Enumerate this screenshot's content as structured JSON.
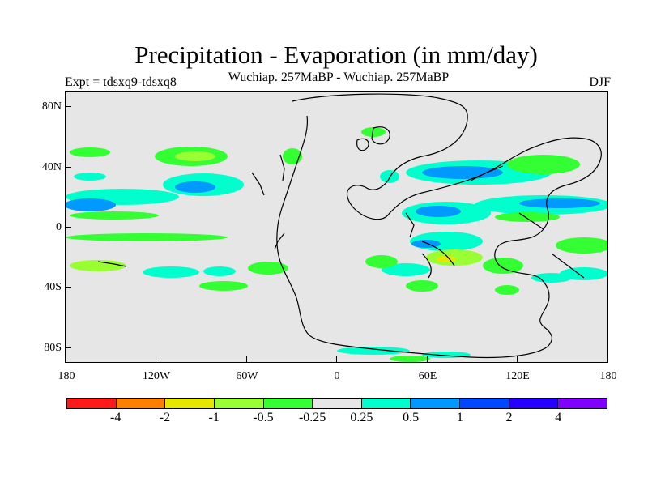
{
  "title": "Precipitation - Evaporation (in mm/day)",
  "subtitle": "Wuchiap. 257MaBP - Wuchiap. 257MaBP",
  "left_label": "Expt = tdsxq9-tdsxq8",
  "right_label": "DJF",
  "y_ticks": [
    "80N",
    "40N",
    "0",
    "40S",
    "80S"
  ],
  "x_ticks": [
    "180",
    "120W",
    "60W",
    "0",
    "60E",
    "120E",
    "180"
  ],
  "colorbar": {
    "labels": [
      "-4",
      "-2",
      "-1",
      "-0.5",
      "-0.25",
      "0.25",
      "0.5",
      "1",
      "2",
      "4"
    ],
    "colors": [
      "#ff1a1a",
      "#ff8000",
      "#e6e600",
      "#99ff33",
      "#33ff33",
      "#e6e6e6",
      "#00ffcc",
      "#0099ff",
      "#0047ff",
      "#2600ff",
      "#8000ff"
    ]
  },
  "chart_data": {
    "type": "heatmap",
    "title": "Precipitation - Evaporation (in mm/day)",
    "subtitle": "Wuchiap. 257MaBP - Wuchiap. 257MaBP",
    "experiment": "Expt = tdsxq9-tdsxq8",
    "season": "DJF",
    "xlim": [
      -180,
      180
    ],
    "ylim": [
      -90,
      90
    ],
    "contour_levels": [
      -4,
      -2,
      -1,
      -0.5,
      -0.25,
      0.25,
      0.5,
      1,
      2,
      4
    ]
  }
}
